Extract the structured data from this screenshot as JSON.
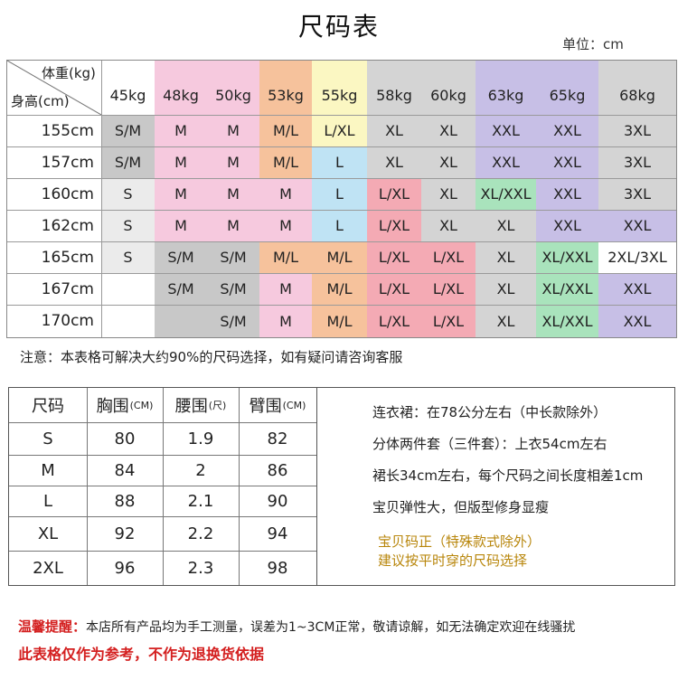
{
  "title": "尺码表",
  "unit": "单位：cm",
  "grid": {
    "corner_weight": "体重(kg)",
    "corner_height": "身高(cm)",
    "weights": [
      "45kg",
      "48kg",
      "50kg",
      "53kg",
      "55kg",
      "58kg",
      "60kg",
      "63kg",
      "65kg",
      "68kg"
    ],
    "heights": [
      "155cm",
      "157cm",
      "160cm",
      "162cm",
      "165cm",
      "167cm",
      "170cm"
    ],
    "rows": [
      [
        "S/M",
        "M",
        "M",
        "M/L",
        "L/XL",
        "XL",
        "XL",
        "XXL",
        "XXL",
        "3XL"
      ],
      [
        "S/M",
        "M",
        "M",
        "M/L",
        "L",
        "XL",
        "XL",
        "XXL",
        "XXL",
        "3XL"
      ],
      [
        "S",
        "M",
        "M",
        "M",
        "L",
        "L/XL",
        "XL",
        "XL/XXL",
        "XXL",
        "3XL"
      ],
      [
        "S",
        "M",
        "M",
        "M",
        "L",
        "L/XL",
        "XL",
        "XL",
        "XXL",
        "XXL"
      ],
      [
        "S",
        "S/M",
        "S/M",
        "M/L",
        "M/L",
        "L/XL",
        "L/XL",
        "XL",
        "XL/XXL",
        "2XL/3XL"
      ],
      [
        "",
        "S/M",
        "S/M",
        "M",
        "M/L",
        "L/XL",
        "L/XL",
        "XL",
        "XL/XXL",
        "XXL"
      ],
      [
        "",
        "",
        "S/M",
        "M",
        "M/L",
        "L/XL",
        "L/XL",
        "XL",
        "XL/XXL",
        "XXL"
      ]
    ],
    "colors": {
      "gray": "#c8c8c8",
      "lightgray": "#ebebeb",
      "pink": "#f6c9de",
      "orange": "#f6c29c",
      "yellow": "#fbf7c2",
      "blue": "#bfe3f4",
      "red": "#f4aab4",
      "lavender": "#c7bfe6",
      "green": "#a9e3bc",
      "silver": "#d4d4d4"
    }
  },
  "note": "注意：本表格可解决大约90%的尺码选择，如有疑问请咨询客服",
  "measure": {
    "headers": [
      "尺码",
      "胸围",
      "腰围",
      "臂围"
    ],
    "header_units": [
      "",
      "(CM)",
      "(尺)",
      "(CM)"
    ],
    "rows": [
      [
        "S",
        "80",
        "1.9",
        "82"
      ],
      [
        "M",
        "84",
        "2",
        "86"
      ],
      [
        "L",
        "88",
        "2.1",
        "90"
      ],
      [
        "XL",
        "92",
        "2.2",
        "94"
      ],
      [
        "2XL",
        "96",
        "2.3",
        "98"
      ]
    ]
  },
  "info": {
    "line1": "连衣裙：在78公分左右（中长款除外）",
    "line2": "分体两件套（三件套）：上衣54cm左右",
    "line3": "裙长34cm左右，每个尺码之间长度相差1cm",
    "line4": "宝贝弹性大，但版型修身显瘦",
    "gold1": "宝贝码正（特殊款式除外）",
    "gold2": "建议按平时穿的尺码选择"
  },
  "warm_label": "温馨提醒：",
  "warm_text": "本店所有产品均为手工测量，误差为1~3CM正常，敬请谅解，如无法确定欢迎在线骚扰",
  "reference": "此表格仅作为参考，不作为退换货依据"
}
